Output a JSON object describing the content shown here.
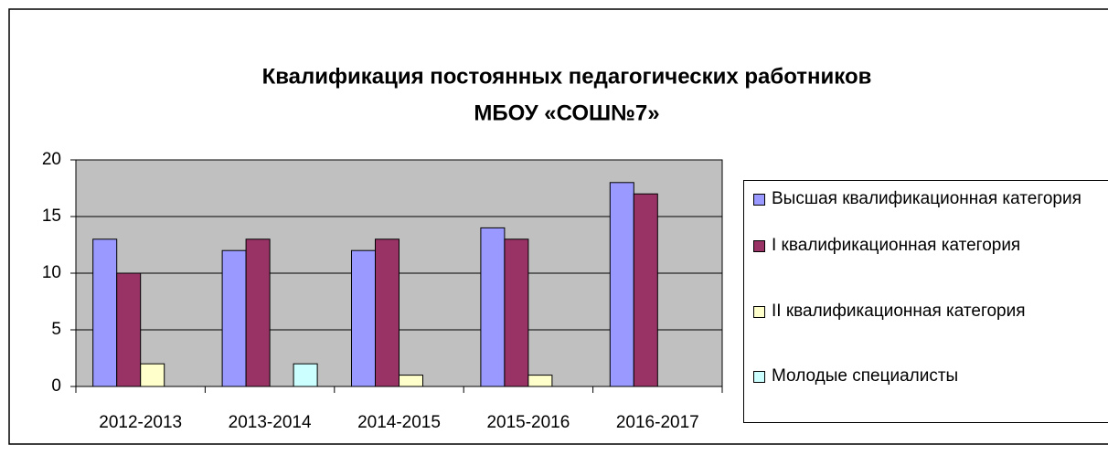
{
  "chart_data": {
    "type": "bar",
    "title": [
      "Квалификация постоянных педагогических работников",
      "МБОУ «СОШ№7»"
    ],
    "categories": [
      "2012-2013",
      "2013-2014",
      "2014-2015",
      "2015-2016",
      "2016-2017"
    ],
    "series": [
      {
        "name": "Высшая квалификационная категория",
        "color": "#9999ff",
        "values": [
          13,
          12,
          12,
          14,
          18
        ]
      },
      {
        "name": "I квалификационная категория",
        "color": "#993366",
        "values": [
          10,
          13,
          13,
          13,
          17
        ]
      },
      {
        "name": "II квалификационная категория",
        "color": "#ffffcc",
        "values": [
          2,
          null,
          1,
          1,
          null
        ]
      },
      {
        "name": "Молодые специалисты",
        "color": "#ccffff",
        "values": [
          null,
          2,
          null,
          null,
          null
        ]
      }
    ],
    "ylim": [
      0,
      20
    ],
    "yticks": [
      0,
      5,
      10,
      15,
      20
    ],
    "grid": true,
    "plot_background": "#c0c0c0"
  }
}
